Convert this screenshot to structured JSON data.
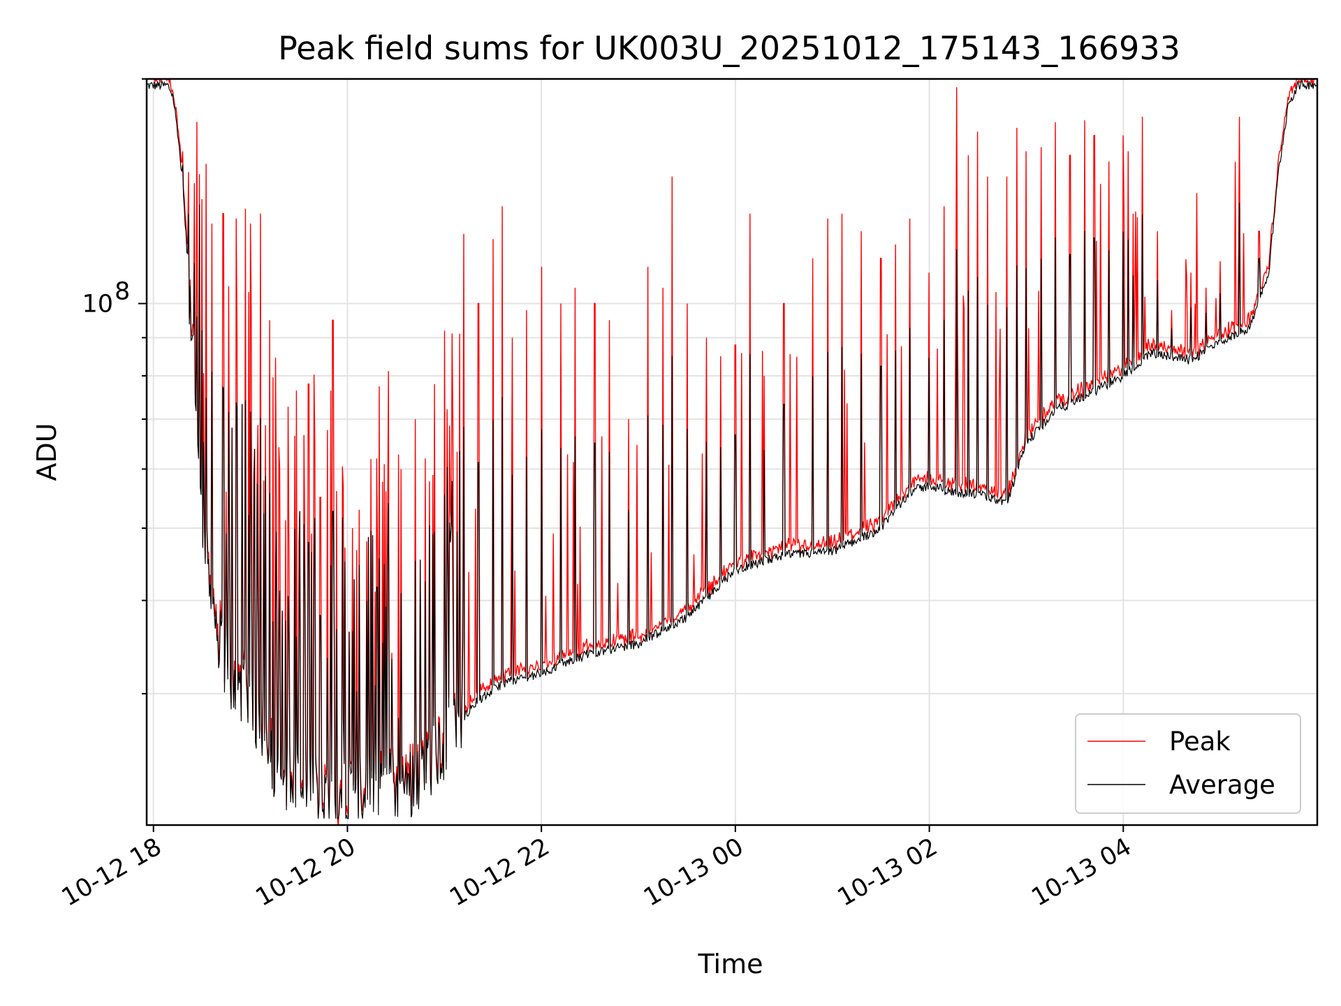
{
  "chart_data": {
    "type": "line",
    "title": "Peak field sums for UK003U_20251012_175143_166933",
    "xlabel": "Time",
    "ylabel": "ADU",
    "yscale": "log",
    "xlim_hours": [
      -0.07,
      12.0
    ],
    "ylim": [
      20000000,
      200000000
    ],
    "x_ticks": [
      {
        "label": "10-12 18",
        "hour": 0
      },
      {
        "label": "10-12 20",
        "hour": 2
      },
      {
        "label": "10-12 22",
        "hour": 4
      },
      {
        "label": "10-13 00",
        "hour": 6
      },
      {
        "label": "10-13 02",
        "hour": 8
      },
      {
        "label": "10-13 04",
        "hour": 10
      }
    ],
    "y_major_ticks": [
      {
        "label": "10",
        "exponent": "8",
        "value": 100000000
      }
    ],
    "y_minor_values": [
      30000000,
      40000000,
      50000000,
      60000000,
      70000000,
      80000000,
      90000000,
      200000000
    ],
    "legend": {
      "location": "lower-right",
      "entries": [
        "Peak",
        "Average"
      ]
    },
    "series": [
      {
        "name": "Peak",
        "color": "#ff0000"
      },
      {
        "name": "Average",
        "color": "#000000"
      }
    ],
    "x_unit": "hours after 2025-10-12 18:00",
    "baseline": [
      [
        -0.07,
        196000000
      ],
      [
        0.15,
        196000000
      ],
      [
        0.2,
        190000000
      ],
      [
        0.25,
        170000000
      ],
      [
        0.3,
        145000000
      ],
      [
        0.35,
        115000000
      ],
      [
        0.4,
        90000000
      ],
      [
        0.45,
        65000000
      ],
      [
        0.5,
        50000000
      ],
      [
        0.6,
        41000000
      ],
      [
        0.7,
        35000000
      ],
      [
        0.8,
        32000000
      ],
      [
        1.0,
        30000000
      ],
      [
        1.2,
        25000000
      ],
      [
        1.3,
        23500000
      ],
      [
        1.6,
        23000000
      ],
      [
        1.8,
        21500000
      ],
      [
        2.0,
        22500000
      ],
      [
        2.3,
        23000000
      ],
      [
        2.6,
        23000000
      ],
      [
        2.8,
        24000000
      ],
      [
        3.0,
        26000000
      ],
      [
        3.3,
        29000000
      ],
      [
        3.6,
        31000000
      ],
      [
        4.0,
        32000000
      ],
      [
        4.5,
        34000000
      ],
      [
        5.0,
        35000000
      ],
      [
        5.5,
        38000000
      ],
      [
        6.0,
        44000000
      ],
      [
        6.5,
        46000000
      ],
      [
        7.0,
        46500000
      ],
      [
        7.5,
        50000000
      ],
      [
        7.8,
        56000000
      ],
      [
        8.0,
        57000000
      ],
      [
        8.2,
        56000000
      ],
      [
        8.5,
        55500000
      ],
      [
        8.8,
        54000000
      ],
      [
        9.0,
        65000000
      ],
      [
        9.3,
        72000000
      ],
      [
        9.6,
        75000000
      ],
      [
        10.0,
        80000000
      ],
      [
        10.3,
        86000000
      ],
      [
        10.7,
        84000000
      ],
      [
        11.0,
        89000000
      ],
      [
        11.3,
        93000000
      ],
      [
        11.5,
        110000000
      ],
      [
        11.6,
        150000000
      ],
      [
        11.7,
        185000000
      ],
      [
        11.8,
        196000000
      ],
      [
        12.0,
        197000000
      ]
    ],
    "peak_spike_tops": [
      [
        0.22,
        180000000
      ],
      [
        0.3,
        160000000
      ],
      [
        0.36,
        150000000
      ],
      [
        0.42,
        145000000
      ],
      [
        0.5,
        138000000
      ],
      [
        0.6,
        128000000
      ],
      [
        0.72,
        132000000
      ],
      [
        0.85,
        130000000
      ],
      [
        0.95,
        134000000
      ],
      [
        1.0,
        128000000
      ],
      [
        1.1,
        132000000
      ],
      [
        1.2,
        95000000
      ],
      [
        1.3,
        60000000
      ],
      [
        1.4,
        47000000
      ],
      [
        1.5,
        48000000
      ],
      [
        1.6,
        78000000
      ],
      [
        1.72,
        55000000
      ],
      [
        1.85,
        95000000
      ],
      [
        1.95,
        53000000
      ],
      [
        2.05,
        50000000
      ],
      [
        2.2,
        48000000
      ],
      [
        2.3,
        62000000
      ],
      [
        2.4,
        56000000
      ],
      [
        2.55,
        60000000
      ],
      [
        2.7,
        70000000
      ],
      [
        2.8,
        62000000
      ],
      [
        2.9,
        78000000
      ],
      [
        3.0,
        92000000
      ],
      [
        3.2,
        124000000
      ],
      [
        3.35,
        100000000
      ],
      [
        3.5,
        122000000
      ],
      [
        3.6,
        135000000
      ],
      [
        3.7,
        90000000
      ],
      [
        3.85,
        98000000
      ],
      [
        4.0,
        112000000
      ],
      [
        4.2,
        100000000
      ],
      [
        4.35,
        105000000
      ],
      [
        4.55,
        100000000
      ],
      [
        4.7,
        95000000
      ],
      [
        4.9,
        70000000
      ],
      [
        5.1,
        112000000
      ],
      [
        5.25,
        105000000
      ],
      [
        5.35,
        148000000
      ],
      [
        5.5,
        100000000
      ],
      [
        5.7,
        90000000
      ],
      [
        5.85,
        85000000
      ],
      [
        6.0,
        88000000
      ],
      [
        6.15,
        132000000
      ],
      [
        6.3,
        80000000
      ],
      [
        6.5,
        100000000
      ],
      [
        6.8,
        115000000
      ],
      [
        6.95,
        130000000
      ],
      [
        7.1,
        132000000
      ],
      [
        7.3,
        125000000
      ],
      [
        7.5,
        115000000
      ],
      [
        7.65,
        120000000
      ],
      [
        7.8,
        130000000
      ],
      [
        8.0,
        110000000
      ],
      [
        8.15,
        135000000
      ],
      [
        8.28,
        195000000
      ],
      [
        8.4,
        158000000
      ],
      [
        8.5,
        170000000
      ],
      [
        8.6,
        148000000
      ],
      [
        8.8,
        148000000
      ],
      [
        8.9,
        172000000
      ],
      [
        9.0,
        160000000
      ],
      [
        9.15,
        162000000
      ],
      [
        9.3,
        175000000
      ],
      [
        9.45,
        158000000
      ],
      [
        9.6,
        176000000
      ],
      [
        9.7,
        168000000
      ],
      [
        9.85,
        155000000
      ],
      [
        10.0,
        168000000
      ],
      [
        10.05,
        160000000
      ],
      [
        10.1,
        132000000
      ],
      [
        10.2,
        178000000
      ],
      [
        10.35,
        125000000
      ],
      [
        10.5,
        98000000
      ],
      [
        10.7,
        110000000
      ],
      [
        10.85,
        105000000
      ],
      [
        11.0,
        114000000
      ],
      [
        11.2,
        178000000
      ],
      [
        11.4,
        125000000
      ],
      [
        11.55,
        130000000
      ]
    ]
  }
}
